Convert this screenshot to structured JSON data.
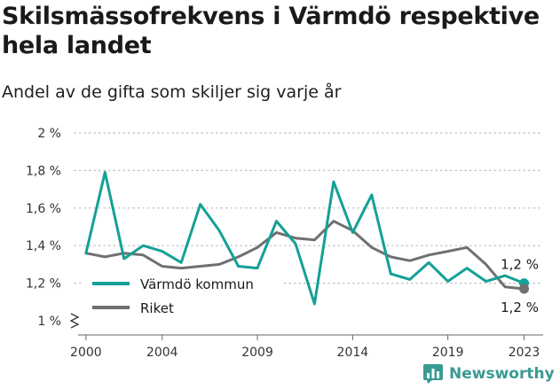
{
  "title": "Skilsmässofrekvens i Värmdö respektive hela landet",
  "subtitle": "Andel av de gifta som skiljer sig varje år",
  "brand": {
    "name": "Newsworthy",
    "icon": "newsworthy-logo-icon",
    "color": "#3a9a93"
  },
  "chart_data": {
    "type": "line",
    "title": "Skilsmässofrekvens i Värmdö respektive hela landet",
    "subtitle": "Andel av de gifta som skiljer sig varje år",
    "xlabel": "",
    "ylabel": "",
    "x": [
      2000,
      2001,
      2002,
      2003,
      2004,
      2005,
      2006,
      2007,
      2008,
      2009,
      2010,
      2011,
      2012,
      2013,
      2014,
      2015,
      2016,
      2017,
      2018,
      2019,
      2020,
      2021,
      2022,
      2023
    ],
    "x_ticks": [
      2000,
      2004,
      2009,
      2014,
      2019,
      2023
    ],
    "x_tick_labels": [
      "2000",
      "2004",
      "2009",
      "2014",
      "2019",
      "2023"
    ],
    "ylim": [
      1.0,
      2.0
    ],
    "y_ticks": [
      1.0,
      1.2,
      1.4,
      1.6,
      1.8,
      2.0
    ],
    "y_tick_labels": [
      "1 %",
      "1,2 %",
      "1,4 %",
      "1,6 %",
      "1,8 %",
      "2 %"
    ],
    "y_axis_break": true,
    "grid": "horizontal dotted",
    "legend_position": "bottom-left",
    "series": [
      {
        "name": "Värmdö kommun",
        "color": "#14a096",
        "values": [
          1.36,
          1.79,
          1.33,
          1.4,
          1.37,
          1.31,
          1.62,
          1.48,
          1.29,
          1.28,
          1.53,
          1.41,
          1.09,
          1.74,
          1.47,
          1.67,
          1.25,
          1.22,
          1.31,
          1.21,
          1.28,
          1.21,
          1.24,
          1.2
        ],
        "end_label": "1,2 %"
      },
      {
        "name": "Riket",
        "color": "#707070",
        "values": [
          1.36,
          1.34,
          1.36,
          1.35,
          1.29,
          1.28,
          1.29,
          1.3,
          1.34,
          1.39,
          1.47,
          1.44,
          1.43,
          1.53,
          1.48,
          1.39,
          1.34,
          1.32,
          1.35,
          1.37,
          1.39,
          1.3,
          1.18,
          1.17
        ],
        "end_label": "1,2 %"
      }
    ]
  }
}
